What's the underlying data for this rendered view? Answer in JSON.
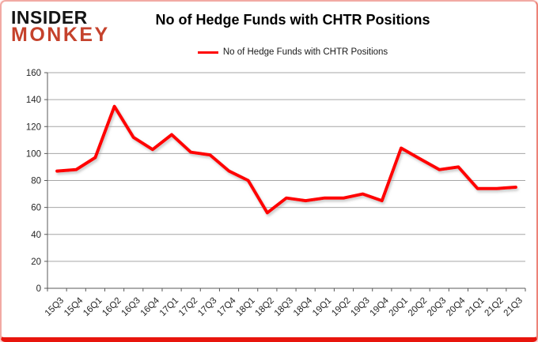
{
  "logo": {
    "line1": "INSIDER",
    "line2": "MONKEY"
  },
  "header": {
    "title": "No of Hedge Funds with CHTR Positions"
  },
  "legend": {
    "label": "No of Hedge Funds with CHTR Positions"
  },
  "colors": {
    "series_red": "#ff0000",
    "logo_red": "#c5422c",
    "border_red": "#e8150d",
    "gridline_gray": "#a6a6a6",
    "axis_gray": "#595959",
    "label_gray": "#262626"
  },
  "chart_data": {
    "type": "line",
    "title": "No of Hedge Funds with CHTR Positions",
    "xlabel": "",
    "ylabel": "",
    "ylim": [
      0,
      160
    ],
    "ytick_step": 20,
    "grid": true,
    "legend_position": "top-center",
    "categories": [
      "15Q3",
      "15Q4",
      "16Q1",
      "16Q2",
      "16Q3",
      "16Q4",
      "17Q1",
      "17Q2",
      "17Q3",
      "17Q4",
      "18Q1",
      "18Q2",
      "18Q3",
      "18Q4",
      "19Q1",
      "19Q2",
      "19Q3",
      "19Q4",
      "20Q1",
      "20Q2",
      "20Q3",
      "20Q4",
      "21Q1",
      "21Q2",
      "21Q3"
    ],
    "series": [
      {
        "name": "No of Hedge Funds with CHTR Positions",
        "color": "#ff0000",
        "values": [
          87,
          88,
          97,
          135,
          112,
          103,
          114,
          101,
          99,
          87,
          80,
          56,
          67,
          65,
          67,
          67,
          70,
          65,
          104,
          96,
          88,
          90,
          74,
          74,
          75
        ]
      }
    ]
  }
}
